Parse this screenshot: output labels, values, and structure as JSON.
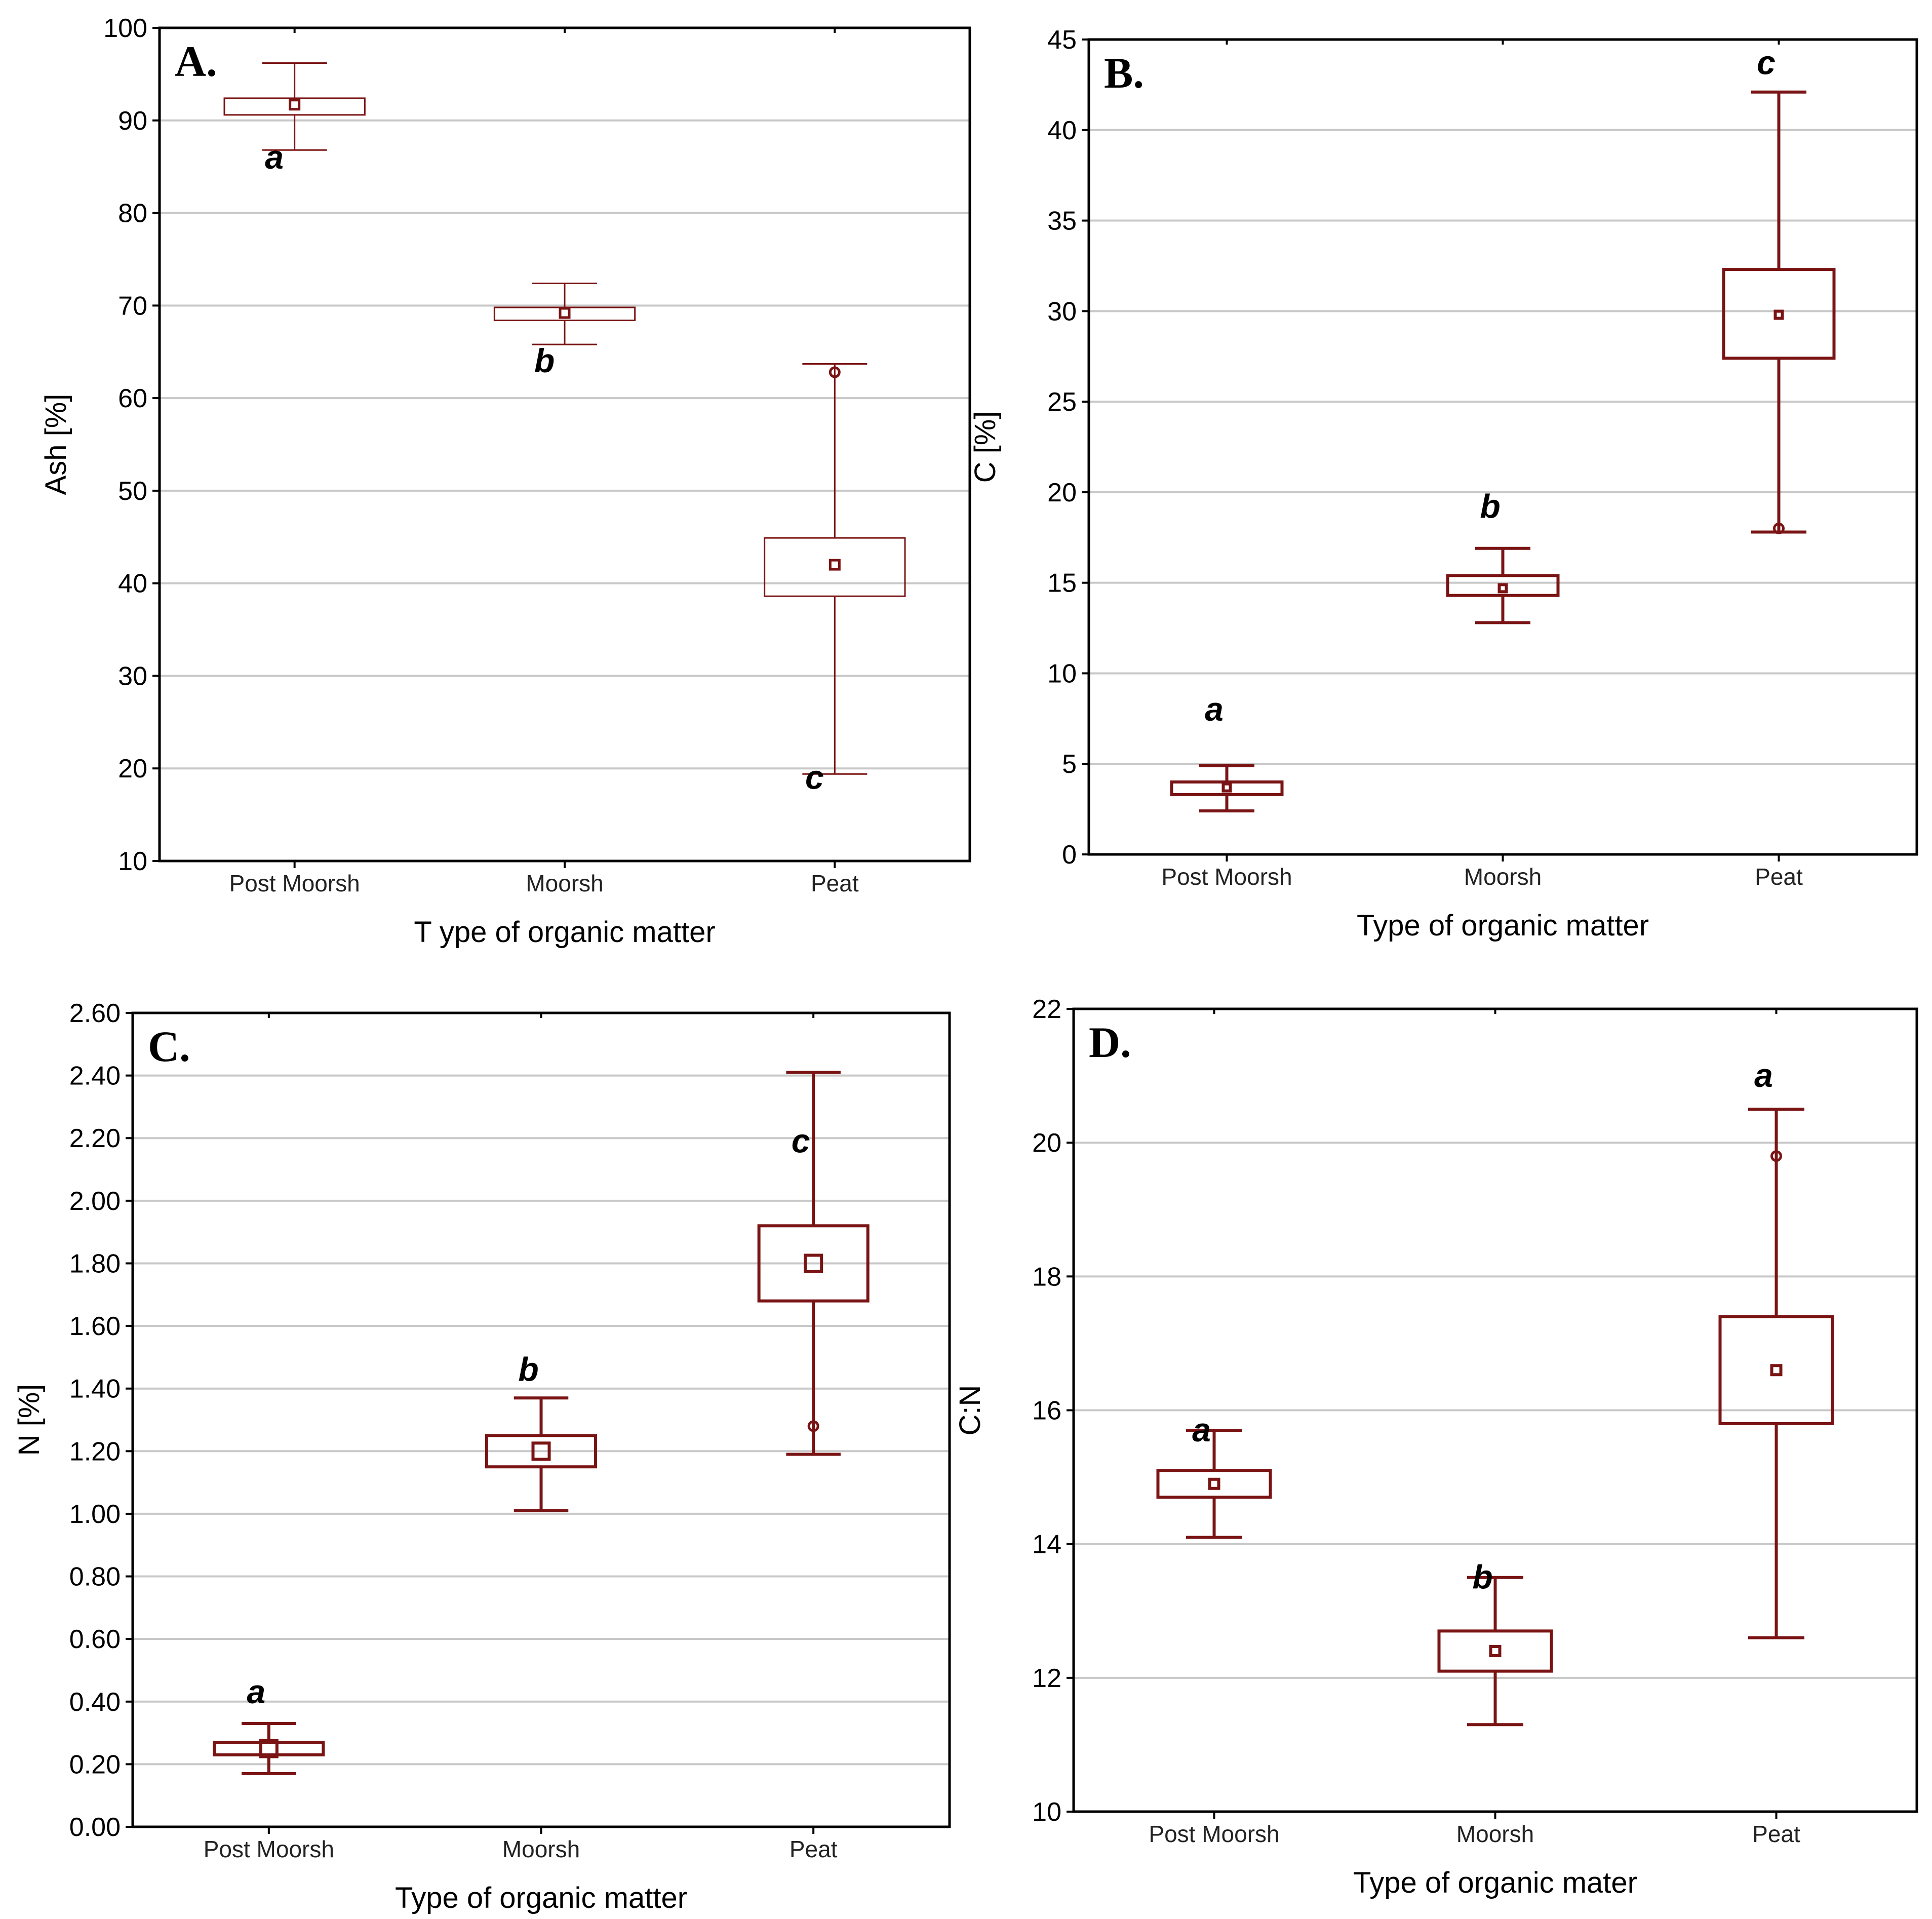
{
  "chart_data": [
    {
      "type": "box",
      "panel": "A.",
      "ylabel": "Ash [%]",
      "xlabel": "T ype of organic matter",
      "ylim": [
        10,
        100
      ],
      "yticks": [
        10,
        20,
        30,
        40,
        50,
        60,
        70,
        80,
        90,
        100
      ],
      "tick_decimals": 0,
      "categories": [
        "Post Moorsh",
        "Moorsh",
        "Peat"
      ],
      "boxes": [
        {
          "mean": 91.7,
          "q1": 90.6,
          "q3": 92.4,
          "min": 86.8,
          "max": 96.2,
          "outlier": null,
          "letter": "a",
          "letter_y": 86
        },
        {
          "mean": 69.2,
          "q1": 68.4,
          "q3": 69.8,
          "min": 65.8,
          "max": 72.4,
          "outlier": null,
          "letter": "b",
          "letter_y": 64
        },
        {
          "mean": 42.0,
          "q1": 38.6,
          "q3": 44.9,
          "min": 19.4,
          "max": 63.7,
          "outlier": 62.8,
          "letter": "c",
          "letter_y": 19
        }
      ],
      "style": {
        "stroke": 3,
        "mark": 18,
        "box_half": 0.26,
        "cap_half": 0.12
      }
    },
    {
      "type": "box",
      "panel": "B.",
      "ylabel": "C [%]",
      "xlabel": "Type of organic matter",
      "ylim": [
        0,
        45
      ],
      "yticks": [
        0,
        5,
        10,
        15,
        20,
        25,
        30,
        35,
        40,
        45
      ],
      "tick_decimals": 0,
      "categories": [
        "Post Moorsh",
        "Moorsh",
        "Peat"
      ],
      "boxes": [
        {
          "mean": 3.7,
          "q1": 3.3,
          "q3": 4.0,
          "min": 2.4,
          "max": 4.9,
          "outlier": null,
          "letter": "a",
          "letter_y": 8.0
        },
        {
          "mean": 14.7,
          "q1": 14.3,
          "q3": 15.4,
          "min": 12.8,
          "max": 16.9,
          "outlier": null,
          "letter": "b",
          "letter_y": 19.2
        },
        {
          "mean": 29.8,
          "q1": 27.4,
          "q3": 32.3,
          "min": 17.8,
          "max": 42.1,
          "outlier": 18.0,
          "letter": "c",
          "letter_y": 43.7
        }
      ],
      "style": {
        "stroke": 6,
        "mark": 14,
        "box_half": 0.2,
        "cap_half": 0.1
      }
    },
    {
      "type": "box",
      "panel": "C.",
      "ylabel": "N [%]",
      "xlabel": "Type of organic matter",
      "ylim": [
        0,
        2.6
      ],
      "yticks": [
        0,
        0.2,
        0.4,
        0.6,
        0.8,
        1.0,
        1.2,
        1.4,
        1.6,
        1.8,
        2.0,
        2.2,
        2.4,
        2.6
      ],
      "tick_decimals": 2,
      "categories": [
        "Post Moorsh",
        "Moorsh",
        "Peat"
      ],
      "boxes": [
        {
          "mean": 0.25,
          "q1": 0.23,
          "q3": 0.27,
          "min": 0.17,
          "max": 0.33,
          "outlier": null,
          "letter": "a",
          "letter_y": 0.43
        },
        {
          "mean": 1.2,
          "q1": 1.15,
          "q3": 1.25,
          "min": 1.01,
          "max": 1.37,
          "outlier": null,
          "letter": "b",
          "letter_y": 1.46
        },
        {
          "mean": 1.8,
          "q1": 1.68,
          "q3": 1.92,
          "min": 1.19,
          "max": 2.41,
          "outlier": 1.28,
          "letter": "c",
          "letter_y": 2.19
        }
      ],
      "style": {
        "stroke": 6,
        "mark": 32,
        "box_half": 0.2,
        "cap_half": 0.1
      }
    },
    {
      "type": "box",
      "panel": "D.",
      "ylabel": "C:N",
      "xlabel": "Type of organic mater",
      "ylim": [
        10,
        22
      ],
      "yticks": [
        10,
        12,
        14,
        16,
        18,
        20,
        22
      ],
      "tick_decimals": 0,
      "categories": [
        "Post Moorsh",
        "Moorsh",
        "Peat"
      ],
      "boxes": [
        {
          "mean": 14.9,
          "q1": 14.7,
          "q3": 15.1,
          "min": 14.1,
          "max": 15.7,
          "outlier": null,
          "letter": "a",
          "letter_y": 15.7
        },
        {
          "mean": 12.4,
          "q1": 12.1,
          "q3": 12.7,
          "min": 11.3,
          "max": 13.5,
          "outlier": null,
          "letter": "b",
          "letter_y": 13.5
        },
        {
          "mean": 16.6,
          "q1": 15.8,
          "q3": 17.4,
          "min": 12.6,
          "max": 20.5,
          "outlier": 19.8,
          "letter": "a",
          "letter_y": 21.0
        }
      ],
      "style": {
        "stroke": 6,
        "mark": 18,
        "box_half": 0.2,
        "cap_half": 0.1
      }
    }
  ]
}
